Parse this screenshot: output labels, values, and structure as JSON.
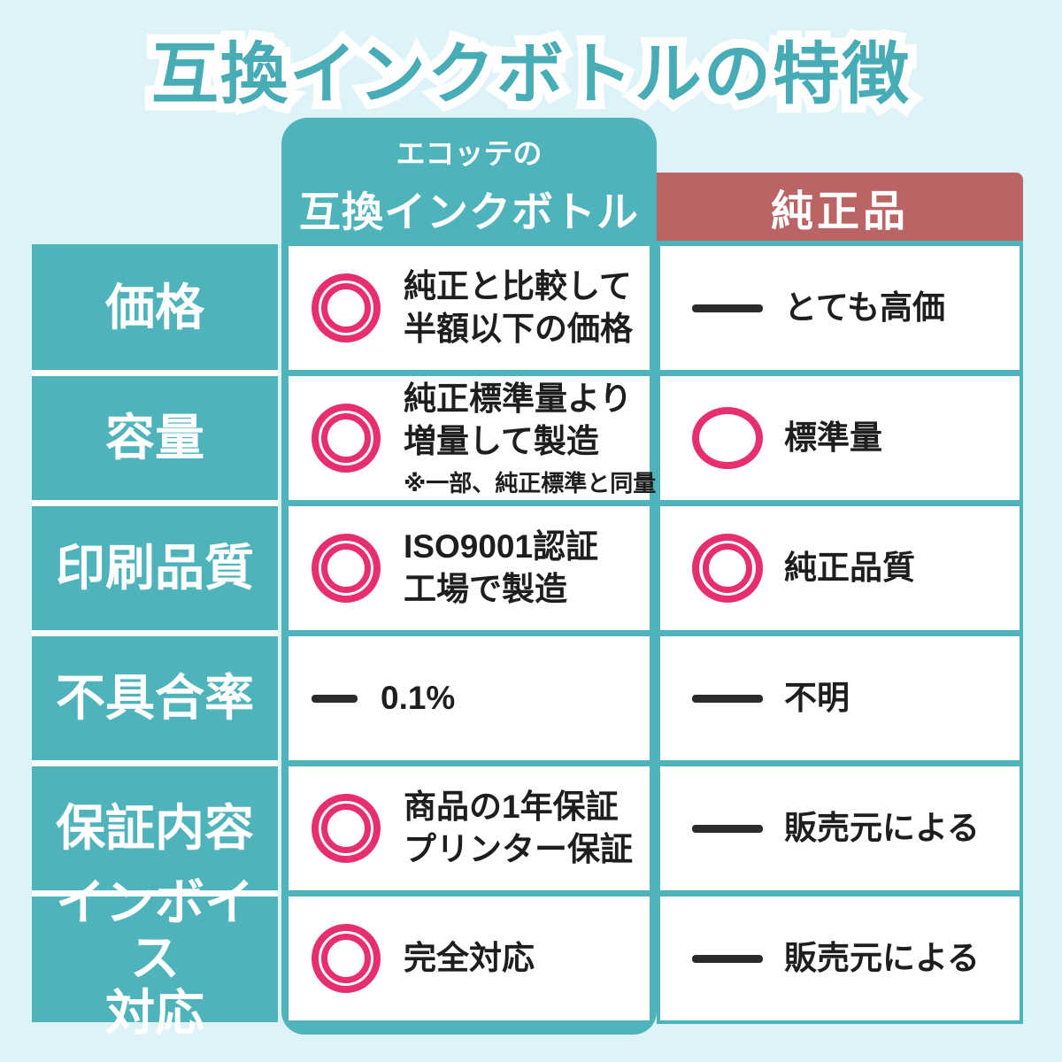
{
  "colors": {
    "background": "#def3f7",
    "teal": "#4fb3bc",
    "red_header": "#bb6466",
    "pink_icon": "#e72f6e",
    "dash_icon": "#2b2b2b"
  },
  "title": "互換インクボトルの特徴",
  "header": {
    "compat_small": "エコッテの",
    "compat_main": "互換インクボトル",
    "genuine": "純正品"
  },
  "rows": [
    {
      "label": "価格",
      "mid": {
        "icon": "double-circle",
        "text": "純正と比較して\n半額以下の価格"
      },
      "right": {
        "icon": "dash",
        "text": "とても高価"
      }
    },
    {
      "label": "容量",
      "mid": {
        "icon": "double-circle",
        "text": "純正標準量より\n増量して製造",
        "note": "※一部、純正標準と同量"
      },
      "right": {
        "icon": "circle",
        "text": "標準量"
      }
    },
    {
      "label": "印刷品質",
      "mid": {
        "icon": "double-circle",
        "text": "ISO9001認証\n工場で製造"
      },
      "right": {
        "icon": "double-circle",
        "text": "純正品質"
      }
    },
    {
      "label": "不具合率",
      "mid": {
        "icon": "dash",
        "text": "0.1%"
      },
      "right": {
        "icon": "dash",
        "text": "不明"
      }
    },
    {
      "label": "保証内容",
      "mid": {
        "icon": "double-circle",
        "text": "商品の1年保証\nプリンター保証"
      },
      "right": {
        "icon": "dash",
        "text": "販売元による"
      }
    },
    {
      "label": "インボイス\n対応",
      "mid": {
        "icon": "double-circle",
        "text": "完全対応"
      },
      "right": {
        "icon": "dash",
        "text": "販売元による"
      }
    }
  ]
}
